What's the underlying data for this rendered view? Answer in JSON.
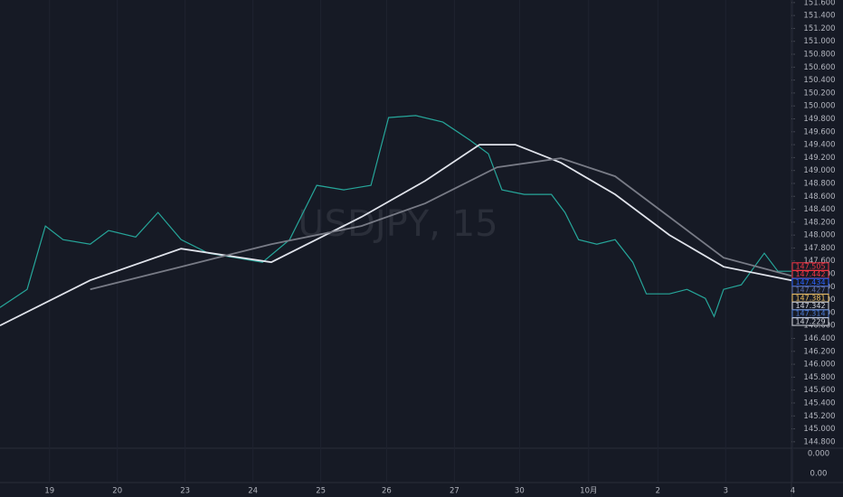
{
  "chart_data": {
    "type": "line",
    "watermark": "USDJPY, 15",
    "xlim": [
      -0.73,
      11.7
    ],
    "xticks": [
      {
        "value": 0,
        "label": "19"
      },
      {
        "value": 1,
        "label": "20"
      },
      {
        "value": 2,
        "label": "23"
      },
      {
        "value": 3,
        "label": "24"
      },
      {
        "value": 4,
        "label": "25"
      },
      {
        "value": 4.97,
        "label": "26"
      },
      {
        "value": 5.97,
        "label": "27"
      },
      {
        "value": 6.93,
        "label": "30"
      },
      {
        "value": 7.95,
        "label": "10月"
      },
      {
        "value": 8.97,
        "label": "2"
      },
      {
        "value": 9.97,
        "label": "3"
      },
      {
        "value": 10.96,
        "label": "4"
      }
    ],
    "ylim": [
      144.7,
      151.64
    ],
    "yticks": [
      {
        "value": 144.8,
        "label": "144.800"
      },
      {
        "value": 145.0,
        "label": "145.000"
      },
      {
        "value": 145.2,
        "label": "145.200"
      },
      {
        "value": 145.4,
        "label": "145.400"
      },
      {
        "value": 145.6,
        "label": "145.600"
      },
      {
        "value": 145.8,
        "label": "145.800"
      },
      {
        "value": 146.0,
        "label": "146.000"
      },
      {
        "value": 146.2,
        "label": "146.200"
      },
      {
        "value": 146.4,
        "label": "146.400"
      },
      {
        "value": 146.6,
        "label": "146.600"
      },
      {
        "value": 146.8,
        "label": "146.800"
      },
      {
        "value": 147.0,
        "label": "147.000"
      },
      {
        "value": 147.2,
        "label": "147.200"
      },
      {
        "value": 147.4,
        "label": "147.400"
      },
      {
        "value": 147.6,
        "label": "147.600"
      },
      {
        "value": 147.8,
        "label": "147.800"
      },
      {
        "value": 148.0,
        "label": "148.000"
      },
      {
        "value": 148.2,
        "label": "148.200"
      },
      {
        "value": 148.4,
        "label": "148.400"
      },
      {
        "value": 148.6,
        "label": "148.600"
      },
      {
        "value": 148.8,
        "label": "148.800"
      },
      {
        "value": 149.0,
        "label": "149.000"
      },
      {
        "value": 149.2,
        "label": "149.200"
      },
      {
        "value": 149.4,
        "label": "149.400"
      },
      {
        "value": 149.6,
        "label": "149.600"
      },
      {
        "value": 149.8,
        "label": "149.800"
      },
      {
        "value": 150.0,
        "label": "150.000"
      },
      {
        "value": 150.2,
        "label": "150.200"
      },
      {
        "value": 150.4,
        "label": "150.400"
      },
      {
        "value": 150.6,
        "label": "150.600"
      },
      {
        "value": 150.8,
        "label": "150.800"
      },
      {
        "value": 151.0,
        "label": "151.000"
      },
      {
        "value": 151.2,
        "label": "151.200"
      },
      {
        "value": 151.4,
        "label": "151.400"
      },
      {
        "value": 151.6,
        "label": "151.600"
      }
    ],
    "series": [
      {
        "color": "#26a69a",
        "x": [
          -0.73,
          -0.33,
          -0.06,
          0.2,
          0.6,
          0.87,
          1.27,
          1.6,
          1.94,
          2.34,
          2.74,
          3.14,
          3.54,
          3.94,
          4.34,
          4.74,
          5.0,
          5.4,
          5.8,
          6.2,
          6.47,
          6.67,
          7.0,
          7.4,
          7.6,
          7.8,
          8.07,
          8.34,
          8.6,
          8.8,
          9.14,
          9.4,
          9.67,
          9.8,
          9.94,
          10.2,
          10.54,
          10.74,
          10.94
        ],
        "values": [
          146.88,
          147.16,
          148.14,
          147.93,
          147.86,
          148.07,
          147.97,
          148.35,
          147.93,
          147.72,
          147.65,
          147.58,
          147.93,
          148.77,
          148.7,
          148.77,
          149.82,
          149.85,
          149.75,
          149.47,
          149.26,
          148.7,
          148.63,
          148.63,
          148.35,
          147.93,
          147.86,
          147.93,
          147.58,
          147.09,
          147.09,
          147.16,
          147.02,
          146.74,
          147.16,
          147.23,
          147.72,
          147.44,
          147.44
        ]
      },
      {
        "color": "#e0e3eb",
        "x": [
          -0.73,
          0.6,
          1.94,
          3.27,
          4.6,
          5.54,
          6.34,
          6.87,
          7.54,
          8.34,
          9.14,
          9.94,
          10.94
        ],
        "values": [
          146.6,
          147.3,
          147.79,
          147.58,
          148.28,
          148.84,
          149.4,
          149.4,
          149.12,
          148.63,
          148.0,
          147.51,
          147.3
        ]
      },
      {
        "color": "#787b86",
        "x": [
          0.6,
          1.94,
          3.27,
          4.6,
          5.54,
          6.6,
          7.54,
          8.34,
          9.14,
          9.94,
          10.94
        ],
        "values": [
          147.16,
          147.51,
          147.86,
          148.14,
          148.49,
          149.05,
          149.19,
          148.91,
          148.28,
          147.65,
          147.37
        ]
      }
    ],
    "price_tags": [
      {
        "value": 147.505,
        "label": "147.505",
        "color": "#f23645"
      },
      {
        "value": 147.442,
        "label": "147.442",
        "color": "#f23645"
      },
      {
        "value": 147.434,
        "label": "147.434",
        "color": "#2962ff"
      },
      {
        "value": 147.427,
        "label": "147.427",
        "color": "#5d6ea8"
      },
      {
        "value": 147.381,
        "label": "147.381",
        "color": "#f0c060"
      },
      {
        "value": 147.342,
        "label": "147.342",
        "color": "#d1d4dc"
      },
      {
        "value": 147.314,
        "label": "147.314",
        "color": "#4a78d0"
      },
      {
        "value": 147.229,
        "label": "147.229",
        "color": "#d1d4dc"
      }
    ],
    "sub_pane_labels": [
      "0.000",
      "0.00"
    ]
  }
}
